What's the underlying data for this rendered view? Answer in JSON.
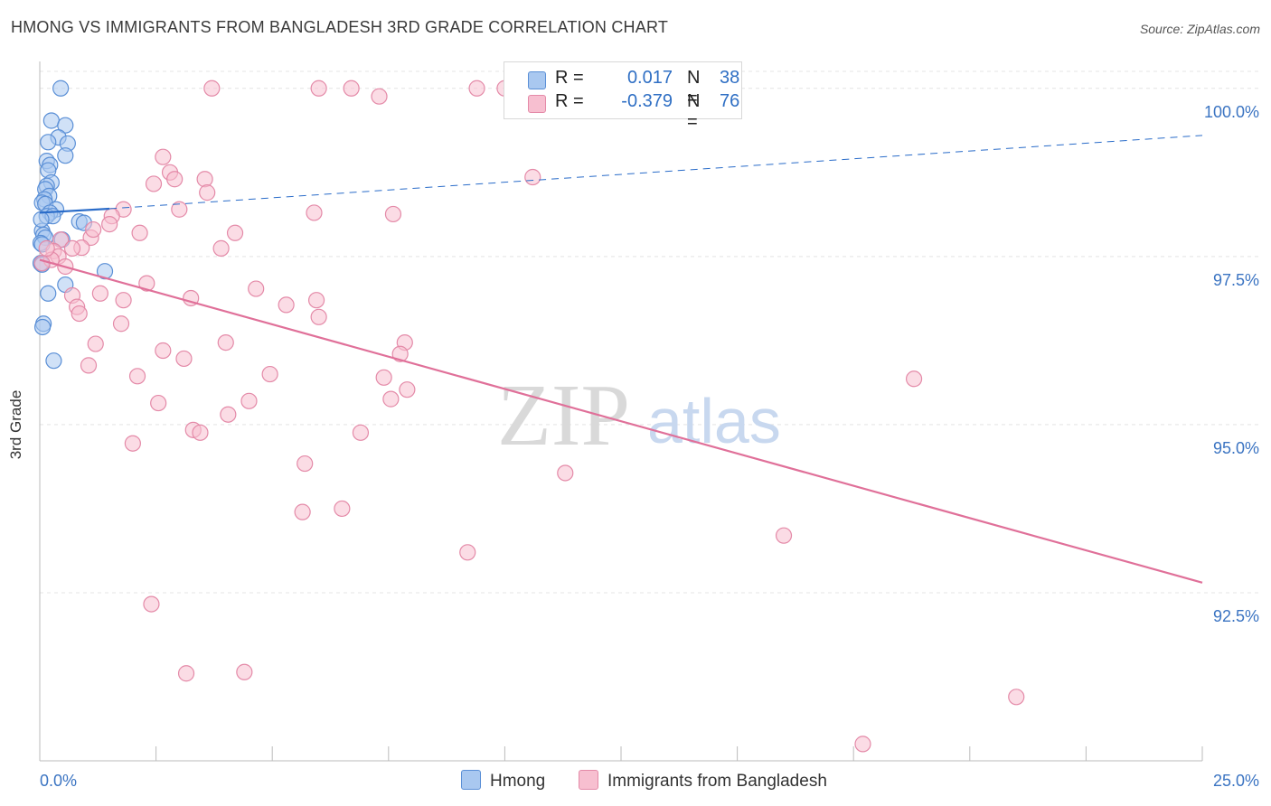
{
  "title": "HMONG VS IMMIGRANTS FROM BANGLADESH 3RD GRADE CORRELATION CHART",
  "source": "Source: ZipAtlas.com",
  "watermark": {
    "zip": "ZIP",
    "atlas": "atlas"
  },
  "legend": {
    "rows": [
      {
        "r_label": "R =",
        "r_value": "0.017",
        "n_label": "N =",
        "n_value": "38"
      },
      {
        "r_label": "R =",
        "r_value": "-0.379",
        "n_label": "N =",
        "n_value": "76"
      }
    ]
  },
  "bottom_legend": {
    "hmong": "Hmong",
    "bangladesh": "Immigrants from Bangladesh"
  },
  "colors": {
    "hmong_fill": "#a9c8f0",
    "hmong_stroke": "#5a8fd6",
    "hmong_line": "#2a6cc9",
    "bangladesh_fill": "#f7bfd0",
    "bangladesh_stroke": "#e48aa8",
    "bangladesh_line": "#e07099",
    "grid": "#e4e4e4",
    "tick_text": "#3b74c2"
  },
  "chart_data": {
    "type": "scatter",
    "title": "HMONG VS IMMIGRANTS FROM BANGLADESH 3RD GRADE CORRELATION CHART",
    "xlabel": "",
    "ylabel": "3rd Grade",
    "xlim": [
      0,
      25
    ],
    "ylim": [
      90.0,
      100.4
    ],
    "x_tick_labels": [
      "0.0%",
      "25.0%"
    ],
    "y_ticks": [
      92.5,
      95.0,
      97.5,
      100.0
    ],
    "y_tick_labels": [
      "92.5%",
      "95.0%",
      "97.5%",
      "100.0%"
    ],
    "grid": true,
    "series": [
      {
        "name": "Hmong",
        "r": 0.017,
        "n": 38,
        "trend": {
          "x": [
            0.0,
            1.5
          ],
          "y": [
            98.15,
            98.21
          ],
          "dashed_extension_to_x": 25.0,
          "dashed_end_y": 99.3
        },
        "points": [
          [
            0.45,
            100.0
          ],
          [
            0.25,
            99.52
          ],
          [
            0.55,
            99.45
          ],
          [
            0.4,
            99.27
          ],
          [
            0.18,
            99.2
          ],
          [
            0.6,
            99.18
          ],
          [
            0.55,
            99.0
          ],
          [
            0.15,
            98.92
          ],
          [
            0.22,
            98.86
          ],
          [
            0.18,
            98.78
          ],
          [
            0.25,
            98.6
          ],
          [
            0.15,
            98.55
          ],
          [
            0.12,
            98.5
          ],
          [
            0.2,
            98.4
          ],
          [
            0.1,
            98.35
          ],
          [
            0.05,
            98.3
          ],
          [
            0.12,
            98.28
          ],
          [
            0.35,
            98.2
          ],
          [
            0.22,
            98.15
          ],
          [
            0.15,
            98.1
          ],
          [
            0.28,
            98.1
          ],
          [
            0.85,
            98.02
          ],
          [
            0.95,
            98.0
          ],
          [
            0.05,
            97.88
          ],
          [
            0.08,
            97.82
          ],
          [
            0.12,
            97.78
          ],
          [
            0.48,
            97.75
          ],
          [
            0.02,
            97.7
          ],
          [
            0.05,
            97.68
          ],
          [
            0.02,
            97.4
          ],
          [
            0.05,
            97.38
          ],
          [
            1.4,
            97.28
          ],
          [
            0.55,
            97.08
          ],
          [
            0.18,
            96.95
          ],
          [
            0.08,
            96.5
          ],
          [
            0.06,
            96.45
          ],
          [
            0.3,
            95.95
          ],
          [
            0.03,
            98.05
          ]
        ]
      },
      {
        "name": "Immigrants from Bangladesh",
        "r": -0.379,
        "n": 76,
        "trend": {
          "x": [
            0.0,
            25.0
          ],
          "y": [
            97.45,
            92.65
          ]
        },
        "points": [
          [
            3.7,
            100.0
          ],
          [
            6.0,
            100.0
          ],
          [
            6.7,
            100.0
          ],
          [
            9.4,
            100.0
          ],
          [
            10.0,
            100.0
          ],
          [
            7.3,
            99.88
          ],
          [
            2.65,
            98.98
          ],
          [
            2.8,
            98.75
          ],
          [
            2.9,
            98.65
          ],
          [
            3.55,
            98.65
          ],
          [
            2.45,
            98.58
          ],
          [
            3.6,
            98.45
          ],
          [
            10.6,
            98.68
          ],
          [
            3.0,
            98.2
          ],
          [
            5.9,
            98.15
          ],
          [
            7.6,
            98.13
          ],
          [
            1.8,
            98.2
          ],
          [
            1.55,
            98.1
          ],
          [
            1.5,
            97.98
          ],
          [
            2.15,
            97.85
          ],
          [
            4.2,
            97.85
          ],
          [
            1.1,
            97.78
          ],
          [
            0.45,
            97.75
          ],
          [
            0.9,
            97.63
          ],
          [
            3.9,
            97.62
          ],
          [
            0.3,
            97.58
          ],
          [
            0.4,
            97.5
          ],
          [
            0.25,
            97.45
          ],
          [
            0.55,
            97.35
          ],
          [
            0.05,
            97.4
          ],
          [
            2.3,
            97.1
          ],
          [
            4.65,
            97.02
          ],
          [
            1.3,
            96.95
          ],
          [
            0.7,
            96.92
          ],
          [
            3.25,
            96.88
          ],
          [
            1.8,
            96.85
          ],
          [
            5.95,
            96.85
          ],
          [
            5.3,
            96.78
          ],
          [
            0.8,
            96.75
          ],
          [
            0.85,
            96.65
          ],
          [
            6.0,
            96.6
          ],
          [
            1.75,
            96.5
          ],
          [
            1.2,
            96.2
          ],
          [
            4.0,
            96.22
          ],
          [
            7.85,
            96.22
          ],
          [
            2.65,
            96.1
          ],
          [
            7.75,
            96.05
          ],
          [
            3.1,
            95.98
          ],
          [
            1.05,
            95.88
          ],
          [
            2.1,
            95.72
          ],
          [
            4.95,
            95.75
          ],
          [
            7.4,
            95.7
          ],
          [
            18.8,
            95.68
          ],
          [
            7.9,
            95.52
          ],
          [
            7.55,
            95.38
          ],
          [
            2.55,
            95.32
          ],
          [
            4.5,
            95.35
          ],
          [
            4.05,
            95.15
          ],
          [
            3.3,
            94.92
          ],
          [
            3.45,
            94.88
          ],
          [
            6.9,
            94.88
          ],
          [
            2.0,
            94.72
          ],
          [
            5.7,
            94.42
          ],
          [
            11.3,
            94.28
          ],
          [
            6.5,
            93.75
          ],
          [
            5.65,
            93.7
          ],
          [
            16.0,
            93.35
          ],
          [
            9.2,
            93.1
          ],
          [
            2.4,
            92.33
          ],
          [
            3.15,
            91.3
          ],
          [
            4.4,
            91.32
          ],
          [
            21.0,
            90.95
          ],
          [
            17.7,
            90.25
          ],
          [
            1.15,
            97.9
          ],
          [
            0.15,
            97.62
          ],
          [
            0.7,
            97.62
          ]
        ]
      }
    ]
  }
}
